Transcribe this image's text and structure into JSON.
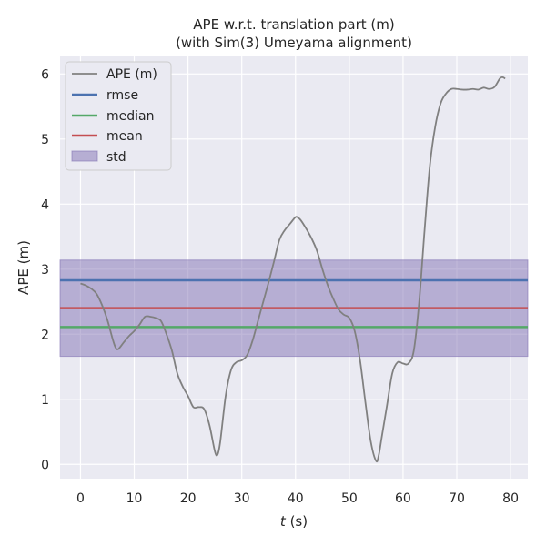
{
  "chart_data": {
    "type": "line",
    "title": "APE w.r.t. translation part (m)",
    "subtitle": "(with Sim(3) Umeyama alignment)",
    "xlabel_italic": "t",
    "xlabel_unit": " (s)",
    "ylabel": "APE (m)",
    "xlim": [
      -3.8,
      83.2
    ],
    "ylim": [
      -0.22,
      6.27
    ],
    "xticks": [
      0,
      10,
      20,
      30,
      40,
      50,
      60,
      70,
      80
    ],
    "yticks": [
      0,
      1,
      2,
      3,
      4,
      5,
      6
    ],
    "grid": true,
    "legend_position": "top-left",
    "series": [
      {
        "name": "APE (m)",
        "color": "#808080",
        "x": [
          0,
          1,
          2,
          3,
          4,
          5,
          6,
          6.5,
          7,
          8,
          9,
          10,
          11,
          12,
          13,
          14,
          15,
          16,
          17,
          18,
          19,
          20,
          21,
          22,
          23,
          24,
          25,
          25.5,
          26,
          27,
          28,
          29,
          30,
          31,
          32,
          33,
          34,
          35,
          36,
          37,
          38,
          39,
          40,
          40.5,
          41,
          42,
          43,
          44,
          45,
          46,
          47,
          48,
          49,
          50,
          51,
          52,
          53,
          54,
          55,
          55.5,
          56,
          57,
          58,
          59,
          60,
          61,
          62,
          63,
          64,
          65,
          66,
          67,
          68,
          69,
          70,
          71,
          72,
          73,
          74,
          75,
          76,
          77,
          78,
          78.5,
          79
        ],
        "y": [
          2.78,
          2.75,
          2.7,
          2.62,
          2.45,
          2.22,
          1.92,
          1.8,
          1.77,
          1.87,
          1.97,
          2.05,
          2.15,
          2.27,
          2.27,
          2.25,
          2.2,
          2.0,
          1.75,
          1.4,
          1.2,
          1.05,
          0.88,
          0.88,
          0.85,
          0.6,
          0.2,
          0.15,
          0.35,
          1.05,
          1.45,
          1.57,
          1.6,
          1.68,
          1.9,
          2.2,
          2.5,
          2.8,
          3.12,
          3.45,
          3.6,
          3.7,
          3.8,
          3.79,
          3.75,
          3.62,
          3.47,
          3.28,
          3.0,
          2.75,
          2.55,
          2.38,
          2.3,
          2.25,
          2.05,
          1.6,
          0.95,
          0.35,
          0.05,
          0.15,
          0.4,
          0.9,
          1.4,
          1.57,
          1.55,
          1.55,
          1.75,
          2.5,
          3.6,
          4.6,
          5.2,
          5.55,
          5.7,
          5.77,
          5.77,
          5.76,
          5.76,
          5.77,
          5.76,
          5.79,
          5.77,
          5.8,
          5.93,
          5.95,
          5.93
        ]
      }
    ],
    "stats": {
      "rmse": {
        "name": "rmse",
        "value": 2.83,
        "color": "#4c72b0"
      },
      "median": {
        "name": "median",
        "value": 2.11,
        "color": "#55a868"
      },
      "mean": {
        "name": "mean",
        "value": 2.4,
        "color": "#c44e52"
      },
      "std": {
        "name": "std",
        "value": 0.74,
        "color": "#8172b3"
      }
    }
  }
}
